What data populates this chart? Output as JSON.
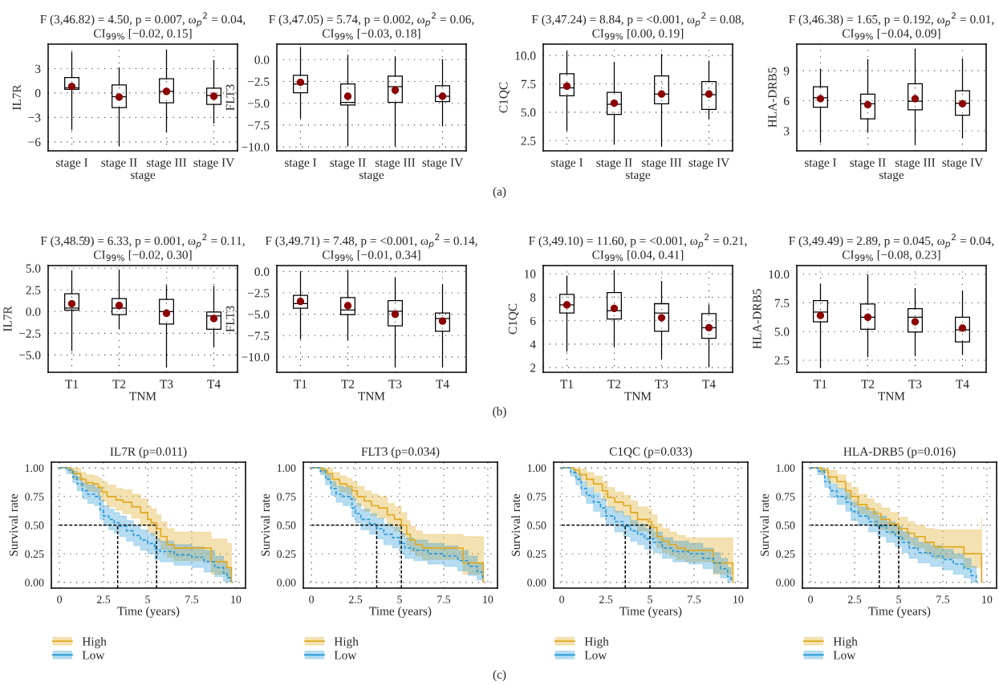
{
  "chart_data": [
    {
      "type": "box",
      "title": "F (3,46.82) = 4.50, p = 0.007, ω$_{p}$$^{2}$ = 0.04,\nCI$_{99%}$ [−0.02, 0.15]",
      "xlabel": "stage",
      "ylabel": "IL7R",
      "categories": [
        "stage I",
        "stage II",
        "stage III",
        "stage IV"
      ],
      "ylim": [
        -7.1,
        6.0
      ],
      "yticks": [
        {
          "value": -6,
          "label": "−6"
        },
        {
          "value": -3,
          "label": "−3"
        },
        0,
        3
      ],
      "grid": true,
      "annotations": [
        "(a)"
      ],
      "boxes": [
        {
          "low": -4.5,
          "q1": 0.44,
          "median": 0.63,
          "q3": 1.9,
          "high": 5.0
        },
        {
          "low": -6.5,
          "q1": -1.8,
          "median": -0.45,
          "q3": 1.0,
          "high": 3.1
        },
        {
          "low": -4.8,
          "q1": -1.2,
          "median": 0.2,
          "q3": 1.75,
          "high": 5.3
        },
        {
          "low": -3.7,
          "q1": -1.4,
          "median": -0.3,
          "q3": 0.6,
          "high": 4.0
        }
      ],
      "series": [
        {
          "type": "scatter",
          "color": "#8b0000",
          "x": [
            "stage I",
            "stage II",
            "stage III",
            "stage IV"
          ],
          "values": [
            0.8,
            -0.5,
            0.2,
            -0.4
          ]
        }
      ]
    },
    {
      "type": "box",
      "title": "F (3,47.05) = 5.74, p = 0.002, ω$_{p}$$^{2}$ = 0.06,\nCI$_{99%}$ [−0.03, 0.18]",
      "xlabel": "stage",
      "ylabel": "FLT3",
      "categories": [
        "stage I",
        "stage II",
        "stage III",
        "stage IV"
      ],
      "ylim": [
        -10.45,
        1.77
      ],
      "yticks": [
        {
          "value": -10,
          "label": "−10.0"
        },
        {
          "value": -7.5,
          "label": "−7.5"
        },
        {
          "value": -5,
          "label": "−5.0"
        },
        {
          "value": -2.5,
          "label": "−2.5"
        },
        {
          "value": 0,
          "label": "0.0"
        }
      ],
      "grid": true,
      "boxes": [
        {
          "low": -6.7,
          "q1": -3.8,
          "median": -2.8,
          "q3": -1.8,
          "high": 1.4
        },
        {
          "low": -9.9,
          "q1": -5.2,
          "median": -4.9,
          "q3": -2.8,
          "high": 0.5
        },
        {
          "low": -9.9,
          "q1": -4.9,
          "median": -3.1,
          "q3": -1.9,
          "high": 0.3
        },
        {
          "low": -7.6,
          "q1": -4.8,
          "median": -4.2,
          "q3": -3.0,
          "high": 0.0
        }
      ],
      "series": [
        {
          "type": "scatter",
          "color": "#8b0000",
          "x": [
            "stage I",
            "stage II",
            "stage III",
            "stage IV"
          ],
          "values": [
            -2.6,
            -4.2,
            -3.5,
            -4.2
          ]
        }
      ]
    },
    {
      "type": "box",
      "title": "F (3,47.24) = 8.84, p = <0.001, ω$_{p}$$^{2}$ = 0.08,\nCI$_{99%}$ [0.00, 0.19]",
      "xlabel": "stage",
      "ylabel": "C1QC",
      "categories": [
        "stage I",
        "stage II",
        "stage III",
        "stage IV"
      ],
      "ylim": [
        1.6,
        11.0
      ],
      "yticks": [
        {
          "value": 2.5,
          "label": "2.5"
        },
        {
          "value": 5,
          "label": "5.0"
        },
        {
          "value": 7.5,
          "label": "7.5"
        },
        {
          "value": 10,
          "label": "10.0"
        }
      ],
      "grid": true,
      "boxes": [
        {
          "low": 3.4,
          "q1": 6.45,
          "median": 7.15,
          "q3": 8.4,
          "high": 10.35
        },
        {
          "low": 2.2,
          "q1": 4.8,
          "median": 5.7,
          "q3": 6.75,
          "high": 9.4
        },
        {
          "low": 2.0,
          "q1": 5.75,
          "median": 6.6,
          "q3": 8.2,
          "high": 10.1
        },
        {
          "low": 4.45,
          "q1": 5.25,
          "median": 6.55,
          "q3": 7.7,
          "high": 9.5
        }
      ],
      "series": [
        {
          "type": "scatter",
          "color": "#8b0000",
          "x": [
            "stage I",
            "stage II",
            "stage III",
            "stage IV"
          ],
          "values": [
            7.3,
            5.8,
            6.6,
            6.6
          ]
        }
      ]
    },
    {
      "type": "box",
      "title": "F (3,46.38) = 1.65, p = 0.192, ω$_{p}$$^{2}$ = 0.01,\nCI$_{99%}$ [−0.04, 0.09]",
      "xlabel": "stage",
      "ylabel": "HLA-DRB5",
      "categories": [
        "stage I",
        "stage II",
        "stage III",
        "stage IV"
      ],
      "ylim": [
        1.0,
        11.65
      ],
      "yticks": [
        3,
        6,
        9
      ],
      "grid": true,
      "boxes": [
        {
          "low": 1.85,
          "q1": 5.35,
          "median": 6.3,
          "q3": 7.4,
          "high": 9.15
        },
        {
          "low": 2.85,
          "q1": 4.2,
          "median": 5.7,
          "q3": 6.65,
          "high": 10.1
        },
        {
          "low": 1.6,
          "q1": 5.1,
          "median": 5.95,
          "q3": 7.7,
          "high": 11.15
        },
        {
          "low": 2.3,
          "q1": 4.55,
          "median": 5.75,
          "q3": 7.0,
          "high": 10.2
        }
      ],
      "series": [
        {
          "type": "scatter",
          "color": "#8b0000",
          "x": [
            "stage I",
            "stage II",
            "stage III",
            "stage IV"
          ],
          "values": [
            6.2,
            5.6,
            6.2,
            5.7
          ]
        }
      ]
    },
    {
      "type": "box",
      "title": "F (3,48.59) = 6.33, p = 0.001, ω$_{p}$$^{2}$ = 0.11,\nCI$_{99%}$ [−0.02, 0.30]",
      "xlabel": "TNM",
      "ylabel": "IL7R",
      "categories": [
        "T1",
        "T2",
        "T3",
        "T4"
      ],
      "ylim": [
        -7.0,
        5.3
      ],
      "yticks": [
        {
          "value": -5,
          "label": "−5.0"
        },
        {
          "value": -2.5,
          "label": "−2.5"
        },
        {
          "value": 0,
          "label": "0.0"
        },
        {
          "value": 2.5,
          "label": "2.5"
        },
        {
          "value": 5,
          "label": "5.0"
        }
      ],
      "grid": true,
      "annotations": [
        "(b)"
      ],
      "boxes": [
        {
          "low": -4.5,
          "q1": 0.15,
          "median": 0.4,
          "q3": 2.05,
          "high": 4.7
        },
        {
          "low": -2.0,
          "q1": -0.35,
          "median": 0.4,
          "q3": 1.5,
          "high": 4.8
        },
        {
          "low": -6.4,
          "q1": -1.45,
          "median": 0.0,
          "q3": 1.4,
          "high": 3.0
        },
        {
          "low": -4.05,
          "q1": -2.05,
          "median": -0.5,
          "q3": -0.05,
          "high": 2.9
        }
      ],
      "series": [
        {
          "type": "scatter",
          "color": "#8b0000",
          "x": [
            "T1",
            "T2",
            "T3",
            "T4"
          ],
          "values": [
            0.9,
            0.7,
            -0.2,
            -0.8
          ]
        }
      ]
    },
    {
      "type": "box",
      "title": "F (3,49.71) = 7.48, p = <0.001, ω$_{p}$$^{2}$ = 0.14,\nCI$_{99%}$ [−0.01, 0.34]",
      "xlabel": "TNM",
      "ylabel": "FLT3",
      "categories": [
        "T1",
        "T2",
        "T3",
        "T4"
      ],
      "ylim": [
        -11.8,
        0.7
      ],
      "yticks": [
        {
          "value": -10,
          "label": "−10.0"
        },
        {
          "value": -7.5,
          "label": "−7.5"
        },
        {
          "value": -5,
          "label": "−5.0"
        },
        {
          "value": -2.5,
          "label": "−2.5"
        },
        {
          "value": 0,
          "label": "0.0"
        }
      ],
      "grid": true,
      "boxes": [
        {
          "low": -7.9,
          "q1": -4.3,
          "median": -3.75,
          "q3": -2.8,
          "high": 0.0
        },
        {
          "low": -8.0,
          "q1": -5.05,
          "median": -4.5,
          "q3": -3.05,
          "high": 0.15
        },
        {
          "low": -11.2,
          "q1": -6.35,
          "median": -4.65,
          "q3": -3.4,
          "high": -0.7
        },
        {
          "low": -11.2,
          "q1": -7.0,
          "median": -5.5,
          "q3": -4.85,
          "high": -1.55
        }
      ],
      "series": [
        {
          "type": "scatter",
          "color": "#8b0000",
          "x": [
            "T1",
            "T2",
            "T3",
            "T4"
          ],
          "values": [
            -3.5,
            -4.0,
            -5.0,
            -5.8
          ]
        }
      ]
    },
    {
      "type": "box",
      "title": "F (3,49.10) = 11.60, p = <0.001, ω$_{p}$$^{2}$ = 0.21,\nCI$_{99%}$ [0.04, 0.41]",
      "xlabel": "TNM",
      "ylabel": "C1QC",
      "categories": [
        "T1",
        "T2",
        "T3",
        "T4"
      ],
      "ylim": [
        1.6,
        10.7
      ],
      "yticks": [
        2,
        4,
        6,
        8,
        10
      ],
      "grid": true,
      "boxes": [
        {
          "low": 3.4,
          "q1": 6.65,
          "median": 7.35,
          "q3": 8.25,
          "high": 9.8
        },
        {
          "low": 3.8,
          "q1": 6.15,
          "median": 6.85,
          "q3": 8.4,
          "high": 10.3
        },
        {
          "low": 2.75,
          "q1": 5.1,
          "median": 6.65,
          "q3": 7.45,
          "high": 9.35
        },
        {
          "low": 2.05,
          "q1": 4.5,
          "median": 5.4,
          "q3": 6.6,
          "high": 7.35
        }
      ],
      "series": [
        {
          "type": "scatter",
          "color": "#8b0000",
          "x": [
            "T1",
            "T2",
            "T3",
            "T4"
          ],
          "values": [
            7.35,
            7.05,
            6.25,
            5.4
          ]
        }
      ]
    },
    {
      "type": "box",
      "title": "F (3,49.49) = 2.89, p = 0.045, ω$_{p}$$^{2}$ = 0.04,\nCI$_{99%}$ [−0.08, 0.23]",
      "xlabel": "TNM",
      "ylabel": "HLA-DRB5",
      "categories": [
        "T1",
        "T2",
        "T3",
        "T4"
      ],
      "ylim": [
        1.45,
        10.75
      ],
      "yticks": [
        {
          "value": 2.5,
          "label": "2.5"
        },
        {
          "value": 5,
          "label": "5.0"
        },
        {
          "value": 7.5,
          "label": "7.5"
        },
        {
          "value": 10,
          "label": "10.0"
        }
      ],
      "grid": true,
      "boxes": [
        {
          "low": 1.85,
          "q1": 5.85,
          "median": 6.7,
          "q3": 7.7,
          "high": 9.15
        },
        {
          "low": 2.8,
          "q1": 5.2,
          "median": 6.25,
          "q3": 7.4,
          "high": 9.95
        },
        {
          "low": 2.9,
          "q1": 4.95,
          "median": 6.25,
          "q3": 7.0,
          "high": 8.75
        },
        {
          "low": 3.0,
          "q1": 4.1,
          "median": 5.15,
          "q3": 6.25,
          "high": 8.5
        }
      ],
      "series": [
        {
          "type": "scatter",
          "color": "#8b0000",
          "x": [
            "T1",
            "T2",
            "T3",
            "T4"
          ],
          "values": [
            6.4,
            6.25,
            5.85,
            5.3
          ]
        }
      ]
    },
    {
      "type": "step",
      "title": "IL7R (p=0.011)",
      "xlabel": "Time (years)",
      "ylabel": "Survival rate",
      "xlim": [
        -0.46,
        10.55
      ],
      "ylim": [
        -0.05,
        1.05
      ],
      "xticks": [
        0,
        2.5,
        5,
        7.5,
        10
      ],
      "yticks": [
        {
          "value": 0,
          "label": "0.00"
        },
        {
          "value": 0.25,
          "label": "0.25"
        },
        {
          "value": 0.5,
          "label": "0.50"
        },
        {
          "value": 0.75,
          "label": "0.75"
        },
        {
          "value": 1,
          "label": "1.00"
        }
      ],
      "grid": true,
      "legend": "bottom",
      "annotations": [
        "(c)"
      ],
      "ref_lines": [
        {
          "axis": "y",
          "value": 0.5,
          "color": "#000000",
          "line_style": "dashed"
        },
        {
          "axis": "x",
          "value": 3.3,
          "color": "#000000",
          "line_style": "dashed"
        },
        {
          "axis": "x",
          "value": 5.5,
          "color": "#000000",
          "line_style": "dashed"
        }
      ],
      "series": [
        {
          "name": "High",
          "color": "#e0a91f",
          "x": [
            0,
            0.6,
            0.8,
            1.2,
            1.5,
            1.9,
            2.2,
            2.4,
            2.7,
            3.2,
            3.6,
            4.1,
            4.6,
            5.0,
            5.2,
            5.5,
            5.75,
            6.1,
            6.5,
            8.6,
            9.5,
            9.75
          ],
          "values": [
            1.0,
            0.98,
            0.95,
            0.9,
            0.87,
            0.86,
            0.83,
            0.79,
            0.75,
            0.72,
            0.7,
            0.66,
            0.61,
            0.55,
            0.52,
            0.47,
            0.4,
            0.33,
            0.3,
            0.18,
            0.13,
            0.0
          ],
          "lower": [
            1.0,
            0.95,
            0.9,
            0.84,
            0.8,
            0.79,
            0.75,
            0.71,
            0.66,
            0.63,
            0.6,
            0.56,
            0.5,
            0.44,
            0.41,
            0.36,
            0.29,
            0.22,
            0.19,
            0.07,
            0.03,
            0.0
          ],
          "upper": [
            1.0,
            1.0,
            1.0,
            0.96,
            0.94,
            0.93,
            0.91,
            0.88,
            0.85,
            0.82,
            0.81,
            0.77,
            0.73,
            0.67,
            0.64,
            0.59,
            0.53,
            0.47,
            0.44,
            0.38,
            0.34,
            0.25
          ]
        },
        {
          "name": "Low",
          "color": "#2b9bd8",
          "line_style": "dashed",
          "x": [
            0,
            0.4,
            0.75,
            1.0,
            1.3,
            1.6,
            2.0,
            2.3,
            2.5,
            2.8,
            3.1,
            3.4,
            3.8,
            4.2,
            4.6,
            5.0,
            5.4,
            5.7,
            6.5,
            7.5,
            8.2,
            8.8,
            9.3,
            9.5,
            9.7
          ],
          "values": [
            1.0,
            0.98,
            0.92,
            0.86,
            0.8,
            0.77,
            0.75,
            0.63,
            0.58,
            0.55,
            0.52,
            0.49,
            0.45,
            0.41,
            0.37,
            0.34,
            0.29,
            0.27,
            0.24,
            0.22,
            0.18,
            0.13,
            0.08,
            0.04,
            0.01
          ],
          "lower": [
            1.0,
            0.95,
            0.87,
            0.8,
            0.73,
            0.69,
            0.67,
            0.55,
            0.5,
            0.46,
            0.43,
            0.4,
            0.36,
            0.32,
            0.28,
            0.25,
            0.2,
            0.18,
            0.15,
            0.13,
            0.09,
            0.05,
            0.01,
            0.0,
            0.0
          ],
          "upper": [
            1.0,
            1.0,
            0.97,
            0.92,
            0.87,
            0.85,
            0.83,
            0.72,
            0.67,
            0.64,
            0.61,
            0.58,
            0.54,
            0.5,
            0.46,
            0.43,
            0.38,
            0.36,
            0.33,
            0.31,
            0.28,
            0.23,
            0.18,
            0.12,
            0.05
          ]
        }
      ]
    },
    {
      "type": "step",
      "title": "FLT3 (p=0.034)",
      "xlabel": "Time (years)",
      "ylabel": "Survival rate",
      "xlim": [
        -0.46,
        10.55
      ],
      "ylim": [
        -0.05,
        1.05
      ],
      "xticks": [
        0,
        2.5,
        5,
        7.5,
        10
      ],
      "yticks": [
        {
          "value": 0,
          "label": "0.00"
        },
        {
          "value": 0.25,
          "label": "0.25"
        },
        {
          "value": 0.5,
          "label": "0.50"
        },
        {
          "value": 0.75,
          "label": "0.75"
        },
        {
          "value": 1,
          "label": "1.00"
        }
      ],
      "grid": true,
      "legend": "bottom",
      "ref_lines": [
        {
          "axis": "y",
          "value": 0.5,
          "color": "#000000",
          "line_style": "dashed"
        },
        {
          "axis": "x",
          "value": 3.7,
          "color": "#000000",
          "line_style": "dashed"
        },
        {
          "axis": "x",
          "value": 5.1,
          "color": "#000000",
          "line_style": "dashed"
        }
      ],
      "series": [
        {
          "name": "High",
          "color": "#e0a91f",
          "x": [
            0,
            0.6,
            0.9,
            1.2,
            1.6,
            2.0,
            2.3,
            2.6,
            3.0,
            3.4,
            3.8,
            4.3,
            4.7,
            5.1,
            5.4,
            5.6,
            5.9,
            6.3,
            8.6,
            9.75
          ],
          "values": [
            1.0,
            0.98,
            0.95,
            0.9,
            0.86,
            0.84,
            0.8,
            0.75,
            0.71,
            0.67,
            0.65,
            0.59,
            0.55,
            0.5,
            0.42,
            0.37,
            0.33,
            0.3,
            0.17,
            0.0
          ],
          "lower": [
            1.0,
            0.95,
            0.9,
            0.84,
            0.79,
            0.77,
            0.72,
            0.67,
            0.62,
            0.58,
            0.56,
            0.49,
            0.45,
            0.4,
            0.32,
            0.27,
            0.23,
            0.2,
            0.07,
            0.0
          ],
          "upper": [
            1.0,
            1.0,
            1.0,
            0.96,
            0.93,
            0.91,
            0.88,
            0.84,
            0.8,
            0.77,
            0.75,
            0.69,
            0.66,
            0.61,
            0.54,
            0.49,
            0.45,
            0.42,
            0.4,
            0.4
          ]
        },
        {
          "name": "Low",
          "color": "#2b9bd8",
          "line_style": "dashed",
          "x": [
            0,
            0.5,
            0.8,
            1.1,
            1.4,
            1.8,
            2.2,
            2.3,
            2.5,
            2.8,
            3.3,
            3.7,
            4.1,
            4.6,
            5.0,
            5.3,
            5.8,
            6.6,
            7.5,
            8.3,
            8.9,
            9.4,
            9.7
          ],
          "values": [
            1.0,
            0.97,
            0.9,
            0.82,
            0.77,
            0.75,
            0.73,
            0.65,
            0.6,
            0.55,
            0.51,
            0.47,
            0.42,
            0.39,
            0.34,
            0.3,
            0.28,
            0.25,
            0.23,
            0.19,
            0.14,
            0.09,
            0.02
          ],
          "lower": [
            1.0,
            0.94,
            0.85,
            0.76,
            0.7,
            0.67,
            0.65,
            0.57,
            0.52,
            0.46,
            0.42,
            0.38,
            0.33,
            0.3,
            0.25,
            0.21,
            0.19,
            0.16,
            0.14,
            0.1,
            0.06,
            0.02,
            0.0
          ],
          "upper": [
            1.0,
            1.0,
            0.95,
            0.88,
            0.84,
            0.83,
            0.81,
            0.74,
            0.69,
            0.64,
            0.6,
            0.56,
            0.51,
            0.48,
            0.43,
            0.39,
            0.37,
            0.34,
            0.32,
            0.28,
            0.23,
            0.17,
            0.1
          ]
        }
      ]
    },
    {
      "type": "step",
      "title": "C1QC (p=0.033)",
      "xlabel": "Time (years)",
      "ylabel": "Survival rate",
      "xlim": [
        -0.46,
        10.55
      ],
      "ylim": [
        -0.05,
        1.05
      ],
      "xticks": [
        0,
        2.5,
        5,
        7.5,
        10
      ],
      "yticks": [
        {
          "value": 0,
          "label": "0.00"
        },
        {
          "value": 0.25,
          "label": "0.25"
        },
        {
          "value": 0.5,
          "label": "0.50"
        },
        {
          "value": 0.75,
          "label": "0.75"
        },
        {
          "value": 1,
          "label": "1.00"
        }
      ],
      "grid": true,
      "legend": "bottom",
      "ref_lines": [
        {
          "axis": "y",
          "value": 0.5,
          "color": "#000000",
          "line_style": "dashed"
        },
        {
          "axis": "x",
          "value": 3.6,
          "color": "#000000",
          "line_style": "dashed"
        },
        {
          "axis": "x",
          "value": 5.0,
          "color": "#000000",
          "line_style": "dashed"
        }
      ],
      "series": [
        {
          "name": "High",
          "color": "#e0a91f",
          "x": [
            0,
            0.7,
            1.0,
            1.4,
            1.8,
            2.3,
            2.6,
            3.0,
            3.5,
            3.9,
            4.3,
            4.9,
            5.1,
            5.4,
            5.7,
            6.1,
            6.5,
            7.0,
            8.6,
            9.7
          ],
          "values": [
            1.0,
            0.98,
            0.94,
            0.9,
            0.86,
            0.8,
            0.74,
            0.7,
            0.67,
            0.61,
            0.55,
            0.53,
            0.48,
            0.4,
            0.36,
            0.33,
            0.3,
            0.28,
            0.17,
            0.0
          ],
          "lower": [
            1.0,
            0.95,
            0.89,
            0.84,
            0.79,
            0.72,
            0.66,
            0.61,
            0.58,
            0.51,
            0.45,
            0.43,
            0.38,
            0.3,
            0.26,
            0.23,
            0.2,
            0.18,
            0.07,
            0.0
          ],
          "upper": [
            1.0,
            1.0,
            0.99,
            0.96,
            0.93,
            0.88,
            0.83,
            0.79,
            0.76,
            0.71,
            0.66,
            0.64,
            0.59,
            0.51,
            0.47,
            0.44,
            0.41,
            0.39,
            0.39,
            0.39
          ]
        },
        {
          "name": "Low",
          "color": "#2b9bd8",
          "line_style": "dashed",
          "x": [
            0,
            0.5,
            0.8,
            1.1,
            1.4,
            1.8,
            2.2,
            2.5,
            3.0,
            3.5,
            3.9,
            4.3,
            4.7,
            5.2,
            5.7,
            6.3,
            7.2,
            8.0,
            8.6,
            9.0,
            9.4,
            9.6
          ],
          "values": [
            1.0,
            0.96,
            0.9,
            0.82,
            0.76,
            0.7,
            0.65,
            0.58,
            0.53,
            0.49,
            0.45,
            0.42,
            0.38,
            0.35,
            0.3,
            0.27,
            0.25,
            0.21,
            0.17,
            0.12,
            0.05,
            0.01
          ],
          "lower": [
            1.0,
            0.93,
            0.85,
            0.76,
            0.69,
            0.62,
            0.57,
            0.5,
            0.44,
            0.4,
            0.36,
            0.33,
            0.29,
            0.26,
            0.21,
            0.18,
            0.16,
            0.12,
            0.08,
            0.04,
            0.0,
            0.0
          ],
          "upper": [
            1.0,
            0.99,
            0.95,
            0.88,
            0.83,
            0.78,
            0.73,
            0.66,
            0.62,
            0.58,
            0.54,
            0.51,
            0.47,
            0.44,
            0.39,
            0.36,
            0.34,
            0.3,
            0.26,
            0.21,
            0.13,
            0.06
          ]
        }
      ]
    },
    {
      "type": "step",
      "title": "HLA-DRB5 (p=0.016)",
      "xlabel": "Time (years)",
      "ylabel": "Survival rate",
      "xlim": [
        -0.46,
        10.55
      ],
      "ylim": [
        -0.05,
        1.05
      ],
      "xticks": [
        0,
        2.5,
        5,
        7.5,
        10
      ],
      "yticks": [
        {
          "value": 0,
          "label": "0.00"
        },
        {
          "value": 0.25,
          "label": "0.25"
        },
        {
          "value": 0.5,
          "label": "0.50"
        },
        {
          "value": 0.75,
          "label": "0.75"
        },
        {
          "value": 1,
          "label": "1.00"
        }
      ],
      "grid": true,
      "legend": "bottom",
      "ref_lines": [
        {
          "axis": "y",
          "value": 0.5,
          "color": "#000000",
          "line_style": "dashed"
        },
        {
          "axis": "x",
          "value": 3.9,
          "color": "#000000",
          "line_style": "dashed"
        },
        {
          "axis": "x",
          "value": 5.0,
          "color": "#000000",
          "line_style": "dashed"
        }
      ],
      "series": [
        {
          "name": "High",
          "color": "#e0a91f",
          "x": [
            0,
            0.6,
            1.0,
            1.5,
            2.0,
            2.3,
            2.7,
            3.2,
            3.6,
            4.0,
            4.5,
            5.0,
            5.5,
            5.9,
            6.5,
            7.0,
            8.7,
            9.7
          ],
          "values": [
            1.0,
            0.98,
            0.92,
            0.88,
            0.8,
            0.75,
            0.68,
            0.64,
            0.6,
            0.55,
            0.51,
            0.47,
            0.43,
            0.4,
            0.35,
            0.31,
            0.25,
            0.0
          ],
          "lower": [
            1.0,
            0.95,
            0.87,
            0.82,
            0.73,
            0.67,
            0.6,
            0.56,
            0.51,
            0.46,
            0.42,
            0.37,
            0.33,
            0.3,
            0.25,
            0.21,
            0.13,
            0.0
          ],
          "upper": [
            1.0,
            1.0,
            0.98,
            0.94,
            0.87,
            0.83,
            0.77,
            0.73,
            0.69,
            0.65,
            0.61,
            0.57,
            0.53,
            0.5,
            0.47,
            0.46,
            0.46,
            0.56
          ]
        },
        {
          "name": "Low",
          "color": "#2b9bd8",
          "line_style": "dashed",
          "x": [
            0,
            0.4,
            0.8,
            1.1,
            1.5,
            2.0,
            2.3,
            2.7,
            3.3,
            3.8,
            4.3,
            4.8,
            5.2,
            5.6,
            6.1,
            6.8,
            7.5,
            8.1,
            8.7,
            9.1,
            9.4
          ],
          "values": [
            1.0,
            0.97,
            0.88,
            0.8,
            0.75,
            0.7,
            0.62,
            0.58,
            0.53,
            0.49,
            0.44,
            0.4,
            0.35,
            0.3,
            0.26,
            0.23,
            0.2,
            0.16,
            0.12,
            0.06,
            0.0
          ],
          "lower": [
            1.0,
            0.94,
            0.83,
            0.74,
            0.68,
            0.62,
            0.54,
            0.5,
            0.44,
            0.4,
            0.35,
            0.31,
            0.26,
            0.21,
            0.17,
            0.14,
            0.11,
            0.07,
            0.04,
            0.0,
            0.0
          ],
          "upper": [
            1.0,
            1.0,
            0.93,
            0.86,
            0.82,
            0.78,
            0.7,
            0.66,
            0.62,
            0.58,
            0.53,
            0.49,
            0.44,
            0.39,
            0.35,
            0.32,
            0.29,
            0.25,
            0.21,
            0.14,
            0.06
          ]
        }
      ]
    }
  ]
}
